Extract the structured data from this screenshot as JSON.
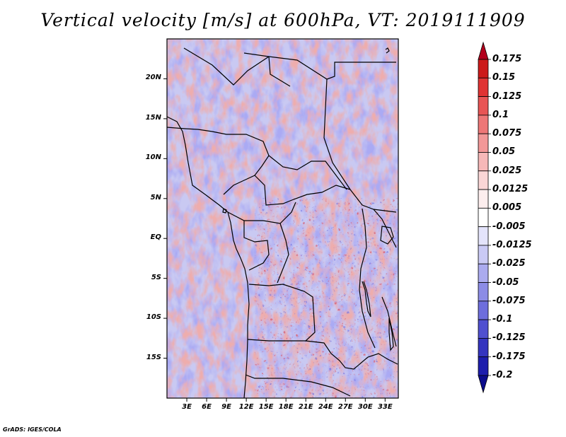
{
  "title": "Vertical velocity [m/s] at 600hPa, VT: 2019111909",
  "credit": "GrADS: IGES/COLA",
  "map": {
    "lon_range": [
      0,
      35
    ],
    "lat_range": [
      -20,
      25
    ],
    "lat_ticks": [
      {
        "value": 20,
        "label": "20N"
      },
      {
        "value": 15,
        "label": "15N"
      },
      {
        "value": 10,
        "label": "10N"
      },
      {
        "value": 5,
        "label": "5N"
      },
      {
        "value": 0,
        "label": "EQ"
      },
      {
        "value": -5,
        "label": "5S"
      },
      {
        "value": -10,
        "label": "10S"
      },
      {
        "value": -15,
        "label": "15S"
      }
    ],
    "lon_ticks": [
      {
        "value": 3,
        "label": "3E"
      },
      {
        "value": 6,
        "label": "6E"
      },
      {
        "value": 9,
        "label": "9E"
      },
      {
        "value": 12,
        "label": "12E"
      },
      {
        "value": 15,
        "label": "15E"
      },
      {
        "value": 18,
        "label": "18E"
      },
      {
        "value": 21,
        "label": "21E"
      },
      {
        "value": 24,
        "label": "24E"
      },
      {
        "value": 27,
        "label": "27E"
      },
      {
        "value": 30,
        "label": "30E"
      },
      {
        "value": 33,
        "label": "33E"
      }
    ]
  },
  "colorbar": {
    "labels": [
      "0.175",
      "0.15",
      "0.125",
      "0.1",
      "0.075",
      "0.05",
      "0.025",
      "0.0125",
      "0.005",
      "-0.005",
      "-0.0125",
      "-0.025",
      "-0.05",
      "-0.075",
      "-0.1",
      "-0.125",
      "-0.175",
      "-0.2"
    ],
    "colors": [
      "#b3001c",
      "#cc1a1a",
      "#e03333",
      "#e85555",
      "#ee7777",
      "#f29898",
      "#f6b8b8",
      "#fad6d6",
      "#fdeeee",
      "#ffffff",
      "#e4e4fb",
      "#cacaf5",
      "#ababef",
      "#8c8ce6",
      "#6e6edd",
      "#5050d0",
      "#3434bf",
      "#1d1dad",
      "#0c0c8c"
    ]
  }
}
